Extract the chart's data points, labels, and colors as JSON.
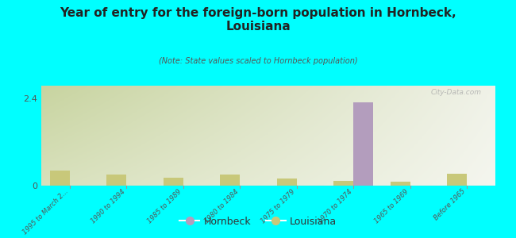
{
  "title": "Year of entry for the foreign-born population in Hornbeck,\nLouisiana",
  "subtitle": "(Note: State values scaled to Hornbeck population)",
  "background_color": "#00FFFF",
  "plot_bg_left": "#c8d4a0",
  "plot_bg_right": "#e8edd8",
  "categories": [
    "1995 to March 2...",
    "1990 to 1994",
    "1985 to 1989",
    "1980 to 1984",
    "1975 to 1979",
    "1970 to 1974",
    "1965 to 1969",
    "Before 1965"
  ],
  "hornbeck_values": [
    0,
    0,
    0,
    0,
    0,
    2.3,
    0,
    0
  ],
  "louisiana_values": [
    0.42,
    0.3,
    0.22,
    0.3,
    0.2,
    0.13,
    0.1,
    0.32
  ],
  "hornbeck_color": "#b39dbd",
  "louisiana_color": "#c8c87a",
  "ylim_min": 0,
  "ylim_max": 2.75,
  "ytick_val": 2.4,
  "watermark": "City-Data.com",
  "legend_labels": [
    "Hornbeck",
    "Louisiana"
  ],
  "bar_width": 0.35
}
